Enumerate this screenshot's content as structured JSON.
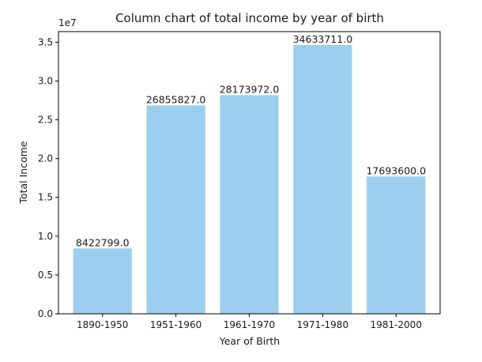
{
  "chart_data": {
    "type": "bar",
    "title": "Column chart of total income by year of birth",
    "xlabel": "Year of Birth",
    "ylabel": "Total Income",
    "y_scale_note": "1e7",
    "categories": [
      "1890-1950",
      "1951-1960",
      "1961-1970",
      "1971-1980",
      "1981-2000"
    ],
    "values": [
      8422799.0,
      26855827.0,
      28173972.0,
      34633711.0,
      17693600.0
    ],
    "value_labels": [
      "8422799.0",
      "26855827.0",
      "28173972.0",
      "34633711.0",
      "17693600.0"
    ],
    "y_ticks": [
      0,
      5000000,
      10000000,
      15000000,
      20000000,
      25000000,
      30000000,
      35000000
    ],
    "y_tick_labels": [
      "0.0",
      "0.5",
      "1.0",
      "1.5",
      "2.0",
      "2.5",
      "3.0",
      "3.5"
    ],
    "ylim": [
      0,
      36365000
    ],
    "bar_color": "#9ccfee",
    "grid": false,
    "legend": "none"
  }
}
